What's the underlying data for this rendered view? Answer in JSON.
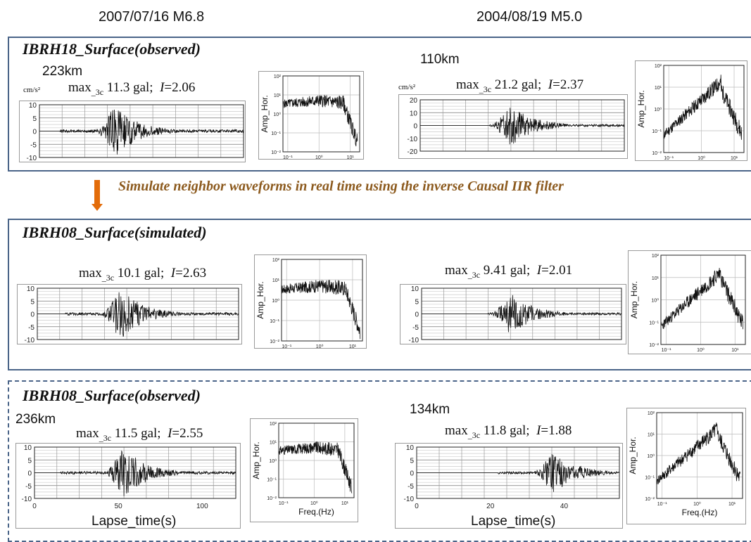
{
  "header": {
    "left_event": "2007/07/16 M6.8",
    "right_event": "2004/08/19 M5.0"
  },
  "banner": "Simulate neighbor waveforms in real time using the inverse Causal IIR filter",
  "unit_label": "cm/s²",
  "spectrum_ylabel": "Amp_Hor.",
  "spectrum_xlabel": "Freq.(Hz)",
  "waveform_xlabel": "Lapse_time(s)",
  "sections": [
    {
      "title_station": "IBRH18_Surface",
      "title_tag": "(observed)",
      "left": {
        "distance": "223km",
        "max_prefix": "max",
        "max_sub": "_3c",
        "max_value": "11.3 gal;",
        "i_label": "I",
        "i_value": "=2.06"
      },
      "right": {
        "distance": "110km",
        "max_prefix": "max",
        "max_sub": "_3c",
        "max_value": "21.2 gal;",
        "i_label": "I",
        "i_value": "=2.37"
      }
    },
    {
      "title_station": "IBRH08_Surface",
      "title_tag": "(simulated)",
      "left": {
        "distance": "",
        "max_prefix": "max",
        "max_sub": "_3c",
        "max_value": "10.1 gal;",
        "i_label": "I",
        "i_value": "=2.63"
      },
      "right": {
        "distance": "",
        "max_prefix": "max",
        "max_sub": "_3c",
        "max_value": "9.41 gal;",
        "i_label": "I",
        "i_value": "=2.01"
      }
    },
    {
      "title_station": "IBRH08_Surface",
      "title_tag": "(observed)",
      "left": {
        "distance": "236km",
        "max_prefix": "max",
        "max_sub": "_3c",
        "max_value": "11.5 gal;",
        "i_label": "I",
        "i_value": "=2.55"
      },
      "right": {
        "distance": "134km",
        "max_prefix": "max",
        "max_sub": "_3c",
        "max_value": "11.8 gal;",
        "i_label": "I",
        "i_value": "=1.88"
      }
    }
  ],
  "waveform_ticks": {
    "y10": [
      "10",
      "5",
      "0",
      "-5",
      "-10"
    ],
    "y20": [
      "20",
      "10",
      "0",
      "-10",
      "-20"
    ],
    "x_left": [
      "0",
      "50",
      "100"
    ],
    "x_right": [
      "0",
      "20",
      "40"
    ]
  },
  "spectrum_ticks": {
    "y": [
      "10²",
      "10¹",
      "10⁰",
      "10⁻¹",
      "10⁻²"
    ],
    "x": [
      "10⁻¹",
      "10⁰",
      "10¹"
    ]
  },
  "colors": {
    "frame": "#4a6488",
    "arrow": "#e36c0a",
    "banner": "#8c5a1e",
    "trace": "#111111"
  }
}
